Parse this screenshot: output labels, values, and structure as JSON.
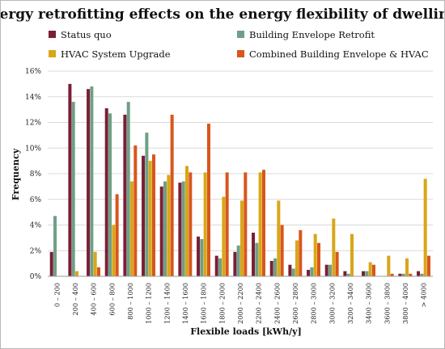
{
  "chart_data": {
    "type": "bar",
    "title": "Energy retrofitting effects on the energy flexibility of dwellings",
    "xlabel": "Flexible loads [kWh/y]",
    "ylabel": "Frequency",
    "ylim": [
      0,
      16
    ],
    "yticks": [
      "0%",
      "2%",
      "4%",
      "6%",
      "8%",
      "10%",
      "12%",
      "14%",
      "16%"
    ],
    "grid": "horizontal",
    "legend_position": "top",
    "categories": [
      "0 – 200",
      "200 – 400",
      "400 – 600",
      "600 – 800",
      "800 – 1000",
      "1000 – 1200",
      "1200 – 1400",
      "1400 – 1600",
      "1600 – 1800",
      "1800 – 2000",
      "2000 – 2200",
      "2200 – 2400",
      "2400 – 2600",
      "2600 – 2800",
      "2800 – 3000",
      "3000 – 3200",
      "3200 – 3400",
      "3400 – 3600",
      "3600 – 3800",
      "3800 – 4000",
      "> 4000"
    ],
    "series": [
      {
        "name": "Status quo",
        "color": "#7a1f35",
        "values": [
          1.9,
          15.0,
          14.6,
          13.1,
          12.6,
          9.4,
          7.0,
          7.3,
          3.1,
          1.6,
          1.9,
          3.4,
          1.2,
          0.9,
          0.5,
          0.9,
          0.4,
          0.4,
          0.0,
          0.2,
          0.4
        ]
      },
      {
        "name": "Building Envelope Retrofit",
        "color": "#6f9f86",
        "values": [
          4.7,
          13.6,
          14.8,
          12.7,
          13.6,
          11.2,
          7.4,
          7.4,
          2.9,
          1.4,
          2.4,
          2.6,
          1.4,
          0.6,
          0.7,
          0.9,
          0.2,
          0.4,
          0.0,
          0.2,
          0.2
        ]
      },
      {
        "name": "HVAC System Upgrade",
        "color": "#d9a617",
        "values": [
          0.0,
          0.4,
          1.9,
          4.0,
          7.4,
          9.0,
          7.9,
          8.6,
          8.1,
          6.2,
          5.9,
          8.1,
          5.9,
          2.8,
          3.3,
          4.5,
          3.3,
          1.1,
          1.6,
          1.4,
          7.6
        ]
      },
      {
        "name": "Combined Building Envelope & HVAC",
        "color": "#d9561c",
        "values": [
          0.0,
          0.0,
          0.7,
          6.4,
          10.2,
          9.5,
          12.6,
          8.1,
          11.9,
          8.1,
          8.1,
          8.3,
          4.0,
          3.6,
          2.6,
          1.9,
          0.0,
          0.9,
          0.2,
          0.2,
          1.6
        ]
      }
    ]
  }
}
